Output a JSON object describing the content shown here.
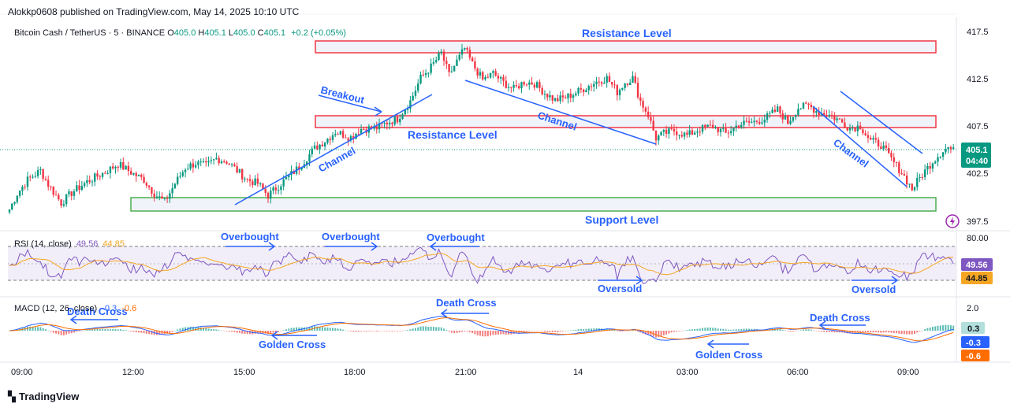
{
  "publisher_line": "Alokkp0608 published on TradingView.com, May 14, 2025 10:10 UTC",
  "legend": {
    "symbol": "Bitcoin Cash / TetherUS · 5 · BINANCE",
    "o_label": "O",
    "o": "405.0",
    "h_label": "H",
    "h": "405.1",
    "l_label": "L",
    "l": "405.0",
    "c_label": "C",
    "c": "405.1",
    "change": "+0.2 (+0.05%)"
  },
  "rsi_legend": {
    "name": "RSI (14, close)",
    "v1": "49.56",
    "v2": "44.85"
  },
  "macd_legend": {
    "name": "MACD (12, 26, close)",
    "v1": "0.3",
    "v2": "-0.3",
    "v3": "-0.6"
  },
  "branding": "TradingView",
  "colors": {
    "up": "#089981",
    "down": "#f23645",
    "annotation": "#2962ff",
    "resistance_box": "#f23645",
    "support_box": "#4caf50",
    "rsi": "#7e57c2",
    "rsi_ma": "#f5a623",
    "macd": "#2962ff",
    "signal": "#ff6d00"
  },
  "chart_data": {
    "type": "candlestick",
    "symbol": "BCHUSDT",
    "interval": "5",
    "x_ticks": [
      "09:00",
      "12:00",
      "15:00",
      "18:00",
      "21:00",
      "14",
      "03:00",
      "06:00",
      "09:00"
    ],
    "price_ticks": [
      "417.5",
      "412.5",
      "407.5",
      "402.5",
      "397.5"
    ],
    "price_range": [
      396.5,
      418.5
    ],
    "last_price": "405.1",
    "countdown": "04:40",
    "price_path": [
      [
        0,
        398.8
      ],
      [
        3,
        400.5
      ],
      [
        7,
        402.0
      ],
      [
        12,
        403.0
      ],
      [
        15,
        401.5
      ],
      [
        20,
        399.5
      ],
      [
        24,
        400.6
      ],
      [
        30,
        401.8
      ],
      [
        36,
        402.7
      ],
      [
        42,
        403.7
      ],
      [
        47,
        402.8
      ],
      [
        52,
        402.0
      ],
      [
        56,
        400.5
      ],
      [
        60,
        399.6
      ],
      [
        64,
        401.6
      ],
      [
        68,
        403.3
      ],
      [
        72,
        403.8
      ],
      [
        76,
        403.5
      ],
      [
        80,
        404.3
      ],
      [
        84,
        404.0
      ],
      [
        88,
        403.0
      ],
      [
        92,
        402.0
      ],
      [
        96,
        401.6
      ],
      [
        100,
        400.3
      ],
      [
        105,
        401.6
      ],
      [
        112,
        403.4
      ],
      [
        118,
        405.4
      ],
      [
        122,
        406.2
      ],
      [
        126,
        407.2
      ],
      [
        132,
        406.6
      ],
      [
        136,
        407.5
      ],
      [
        142,
        407.6
      ],
      [
        146,
        408.2
      ],
      [
        150,
        408.6
      ],
      [
        155,
        410.5
      ],
      [
        159,
        413.0
      ],
      [
        163,
        414.2
      ],
      [
        167,
        415.7
      ],
      [
        170,
        413.3
      ],
      [
        173,
        414.8
      ],
      [
        176,
        416.2
      ],
      [
        179,
        414.5
      ],
      [
        183,
        412.8
      ],
      [
        187,
        413.5
      ],
      [
        191,
        412.5
      ],
      [
        195,
        411.8
      ],
      [
        199,
        412.6
      ],
      [
        203,
        412.4
      ],
      [
        207,
        411.4
      ],
      [
        211,
        410.6
      ],
      [
        215,
        410.9
      ],
      [
        219,
        411.4
      ],
      [
        223,
        412.0
      ],
      [
        227,
        412.6
      ],
      [
        231,
        413.0
      ],
      [
        235,
        411.5
      ],
      [
        238,
        412.5
      ],
      [
        241,
        413.0
      ],
      [
        244,
        410.5
      ],
      [
        247,
        409.0
      ],
      [
        250,
        406.5
      ],
      [
        253,
        407.0
      ],
      [
        257,
        407.3
      ],
      [
        262,
        406.8
      ],
      [
        267,
        407.5
      ],
      [
        272,
        407.8
      ],
      [
        277,
        407.0
      ],
      [
        282,
        408.0
      ],
      [
        287,
        408.2
      ],
      [
        292,
        408.6
      ],
      [
        297,
        409.6
      ],
      [
        301,
        408.2
      ],
      [
        305,
        409.8
      ],
      [
        309,
        410.0
      ],
      [
        313,
        409.3
      ],
      [
        317,
        409.0
      ],
      [
        321,
        408.4
      ],
      [
        325,
        407.6
      ],
      [
        329,
        407.8
      ],
      [
        333,
        406.2
      ],
      [
        337,
        405.8
      ],
      [
        341,
        404.2
      ],
      [
        345,
        402.8
      ],
      [
        349,
        401.0
      ],
      [
        353,
        402.6
      ],
      [
        357,
        404.0
      ],
      [
        361,
        405.2
      ],
      [
        363,
        405.5
      ],
      [
        365,
        405.1
      ]
    ],
    "rsi": {
      "name": "RSI (14, close)",
      "value": 49.56,
      "ma_value": 44.85,
      "upper_band": 70,
      "lower_band": 30,
      "axis_label": "80.00"
    },
    "macd": {
      "name": "MACD (12, 26, close)",
      "histogram": 0.3,
      "macd": -0.3,
      "signal": -0.6,
      "axis_label": "2.0"
    },
    "annotations": {
      "resistance_top": "Resistance Level",
      "resistance_mid": "Resistance Level",
      "support": "Support Level",
      "breakout": "Breakout",
      "channels": [
        "Channel",
        "Channel",
        "Channel"
      ],
      "rsi_notes": [
        "Overbought",
        "Overbought",
        "Overbought",
        "Oversold",
        "Oversold"
      ],
      "macd_notes": [
        "Death Cross",
        "Golden Cross",
        "Death Cross",
        "Golden Cross",
        "Death Cross"
      ]
    }
  }
}
